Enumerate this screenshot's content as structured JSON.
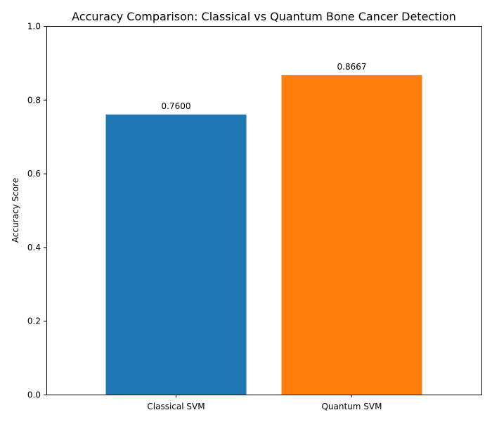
{
  "chart_data": {
    "type": "bar",
    "title": "Accuracy Comparison: Classical vs Quantum Bone Cancer Detection",
    "xlabel": "",
    "ylabel": "Accuracy Score",
    "categories": [
      "Classical SVM",
      "Quantum SVM"
    ],
    "values": [
      0.76,
      0.8667
    ],
    "value_labels": [
      "0.7600",
      "0.8667"
    ],
    "colors": [
      "#1f77b4",
      "#ff7f0e"
    ],
    "ylim": [
      0,
      1.0
    ],
    "yticks": [
      0.0,
      0.2,
      0.4,
      0.6,
      0.8,
      1.0
    ],
    "ytick_labels": [
      "0.0",
      "0.2",
      "0.4",
      "0.6",
      "0.8",
      "1.0"
    ],
    "grid": false,
    "legend": "none"
  }
}
